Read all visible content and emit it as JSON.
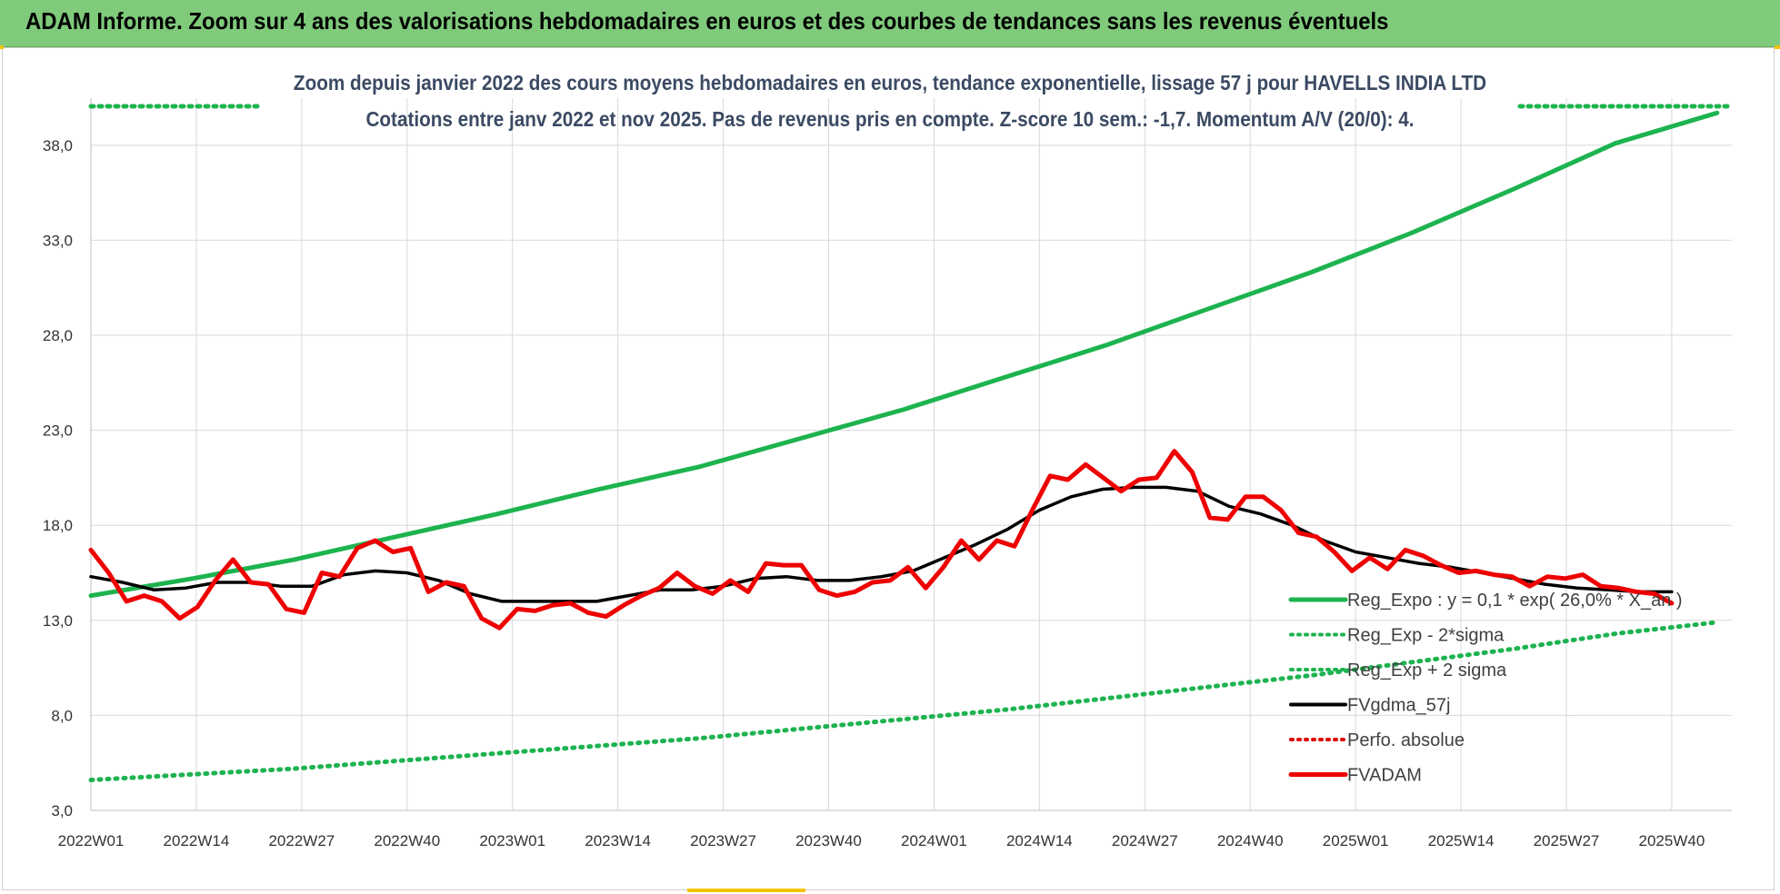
{
  "header": {
    "title": "ADAM Informe. Zoom sur 4 ans des valorisations hebdomadaires en euros et des courbes de tendances sans les revenus éventuels"
  },
  "chart_data": {
    "type": "line",
    "title": "Zoom depuis janvier 2022 des cours moyens hebdomadaires en euros, tendance exponentielle, lissage 57 j pour HAVELLS INDIA LTD",
    "subtitle": "Cotations entre janv 2022 et nov 2025. Pas de revenus pris en compte. Z-score 10 sem.: -1,7. Momentum A/V (20/0): 4.",
    "xlabel": "",
    "ylabel": "",
    "ylim": [
      3,
      40
    ],
    "yticks": [
      "3,0",
      "8,0",
      "13,0",
      "18,0",
      "23,0",
      "28,0",
      "33,0",
      "38,0"
    ],
    "ytick_values": [
      3,
      8,
      13,
      18,
      23,
      28,
      33,
      38
    ],
    "x_ticks": [
      "2022W01",
      "2022W14",
      "2022W27",
      "2022W40",
      "2023W01",
      "2023W14",
      "2023W27",
      "2023W40",
      "2024W01",
      "2024W14",
      "2024W27",
      "2024W40",
      "2025W01",
      "2025W14",
      "2025W27",
      "2025W40"
    ],
    "grid": true,
    "legend_position": "bottom-right",
    "series": [
      {
        "name": "Reg_Expo : y = 0,1 * exp( 26,0% *  X_an )",
        "color": "#1db34f",
        "style": "solid-thick",
        "values": [
          14.3,
          15.2,
          16.2,
          17.4,
          18.6,
          19.9,
          21.1,
          22.6,
          24.1,
          25.8,
          27.5,
          29.4,
          31.3,
          33.4,
          35.7,
          38.1,
          39.7
        ]
      },
      {
        "name": "Reg_Exp - 2*sigma",
        "color": "#1db34f",
        "style": "dotted",
        "values": [
          4.6,
          4.9,
          5.2,
          5.6,
          6.0,
          6.4,
          6.8,
          7.3,
          7.8,
          8.3,
          8.9,
          9.5,
          10.1,
          10.8,
          11.5,
          12.3,
          12.9
        ]
      },
      {
        "name": "Reg_Exp + 2 sigma",
        "color": "#1db34f",
        "style": "dotted",
        "values": []
      },
      {
        "name": "FVgdma_57j",
        "color": "#000000",
        "style": "solid",
        "values": [
          15.3,
          15.0,
          14.6,
          14.7,
          15.0,
          15.0,
          14.8,
          14.8,
          15.4,
          15.6,
          15.5,
          15.1,
          14.4,
          14.0,
          14.0,
          14.0,
          14.0,
          14.3,
          14.6,
          14.6,
          14.8,
          15.2,
          15.3,
          15.1,
          15.1,
          15.3,
          15.6,
          16.3,
          17.0,
          17.8,
          18.8,
          19.5,
          19.9,
          20.0,
          20.0,
          19.8,
          19.0,
          18.6,
          18.0,
          17.2,
          16.6,
          16.3,
          16.0,
          15.8,
          15.5,
          15.2,
          14.9,
          14.7,
          14.6,
          14.5,
          14.5
        ],
        "x_start": 0,
        "x_step": 1.34
      },
      {
        "name": "Perfo. absolue",
        "color": "#e00000",
        "style": "dotted",
        "values": []
      },
      {
        "name": "FVADAM",
        "color": "#ee0000",
        "style": "solid-thick",
        "values": [
          16.7,
          15.5,
          14.0,
          14.3,
          14.0,
          13.1,
          13.7,
          15.1,
          16.2,
          15.0,
          14.9,
          13.6,
          13.4,
          15.5,
          15.3,
          16.8,
          17.2,
          16.6,
          16.8,
          14.5,
          15.0,
          14.8,
          13.1,
          12.6,
          13.6,
          13.5,
          13.8,
          13.9,
          13.4,
          13.2,
          13.8,
          14.3,
          14.7,
          15.5,
          14.8,
          14.4,
          15.1,
          14.5,
          16.0,
          15.9,
          15.9,
          14.6,
          14.3,
          14.5,
          15.0,
          15.1,
          15.8,
          14.7,
          15.8,
          17.2,
          16.2,
          17.2,
          16.9,
          18.8,
          20.6,
          20.4,
          21.2,
          20.5,
          19.8,
          20.4,
          20.5,
          21.9,
          20.8,
          18.4,
          18.3,
          19.5,
          19.5,
          18.8,
          17.6,
          17.4,
          16.6,
          15.6,
          16.3,
          15.7,
          16.7,
          16.4,
          15.9,
          15.5,
          15.6,
          15.4,
          15.3,
          14.8,
          15.3,
          15.2,
          15.4,
          14.8,
          14.7,
          14.5,
          14.4,
          13.9
        ],
        "x_start": 0,
        "x_step": 0.75
      }
    ]
  }
}
